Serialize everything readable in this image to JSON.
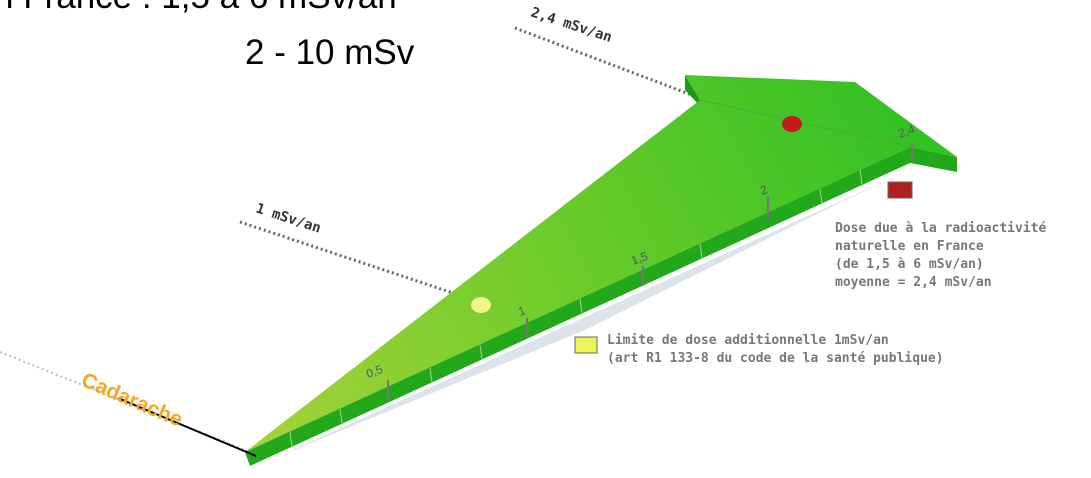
{
  "header": {
    "line1": "n France : 1,5 à 6 mSv/an",
    "line2": "2 - 10 mSv"
  },
  "markers": {
    "natural": "2,4 mSv/an",
    "limit": "1 mSv/an",
    "origin": "Cadarache"
  },
  "scale": [
    "0,5",
    "1",
    "1,5",
    "2",
    "2,4"
  ],
  "legend": {
    "natural": [
      "Dose due à la radioactivité",
      "naturelle en France",
      "(de 1,5 à 6 mSv/an)",
      "moyenne = 2,4 mSv/an"
    ],
    "limit": [
      "Limite de dose additionnelle 1mSv/an",
      "(art R1 133-8 du code de la santé publique)"
    ]
  }
}
